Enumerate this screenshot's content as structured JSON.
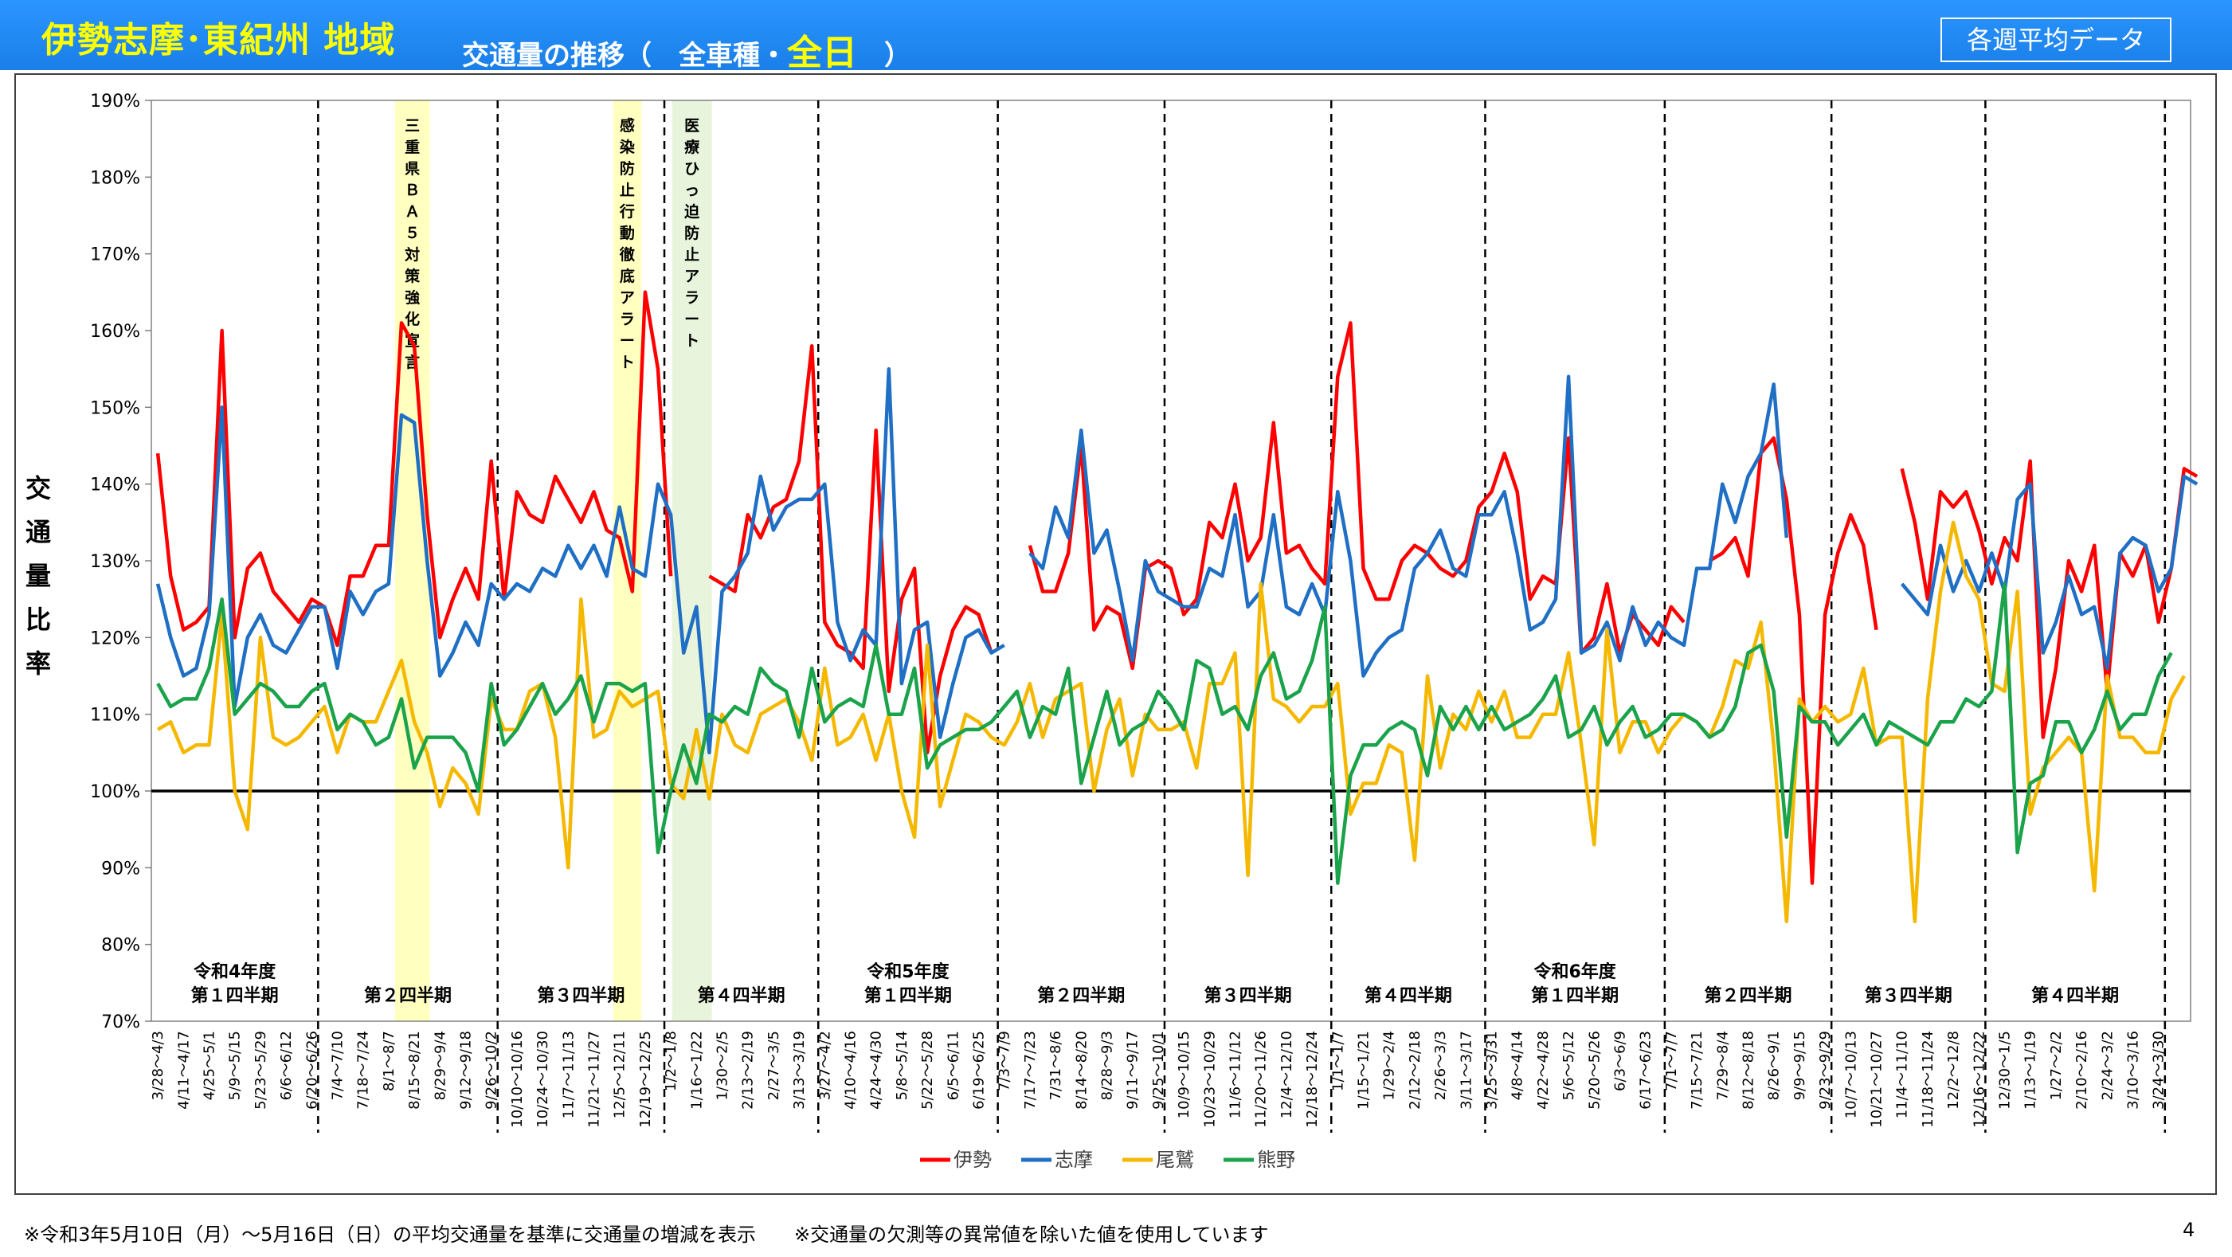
{
  "header": {
    "region": "伊勢志摩･東紀州 地域",
    "title_prefix": "交通量の推移（",
    "title_vehicle": "全車種・",
    "title_allday": "全日",
    "title_suffix": "）",
    "badge": "各週平均データ"
  },
  "footer": {
    "note": "※令和3年5月10日（月）～5月16日（日）の平均交通量を基準に交通量の増減を表示　　※交通量の欠測等の異常値を除いた値を使用しています",
    "page": "4"
  },
  "chart_data": {
    "type": "line",
    "ylabel": "交通量比率",
    "ylim": [
      70,
      190
    ],
    "y_ticks": [
      "70%",
      "80%",
      "90%",
      "100%",
      "110%",
      "120%",
      "130%",
      "140%",
      "150%",
      "160%",
      "170%",
      "180%",
      "190%"
    ],
    "reference_line": 100,
    "x_labels": [
      "3/28～4/3",
      "4/11～4/17",
      "4/25～5/1",
      "5/9～5/15",
      "5/23～5/29",
      "6/6～6/12",
      "6/20～6/26",
      "7/4～7/10",
      "7/18～7/24",
      "8/1～8/7",
      "8/15～8/21",
      "8/29～9/4",
      "9/12～9/18",
      "9/26～10/2",
      "10/10～10/16",
      "10/24～10/30",
      "11/7～11/13",
      "11/21～11/27",
      "12/5～12/11",
      "12/19～12/25",
      "1/2～1/8",
      "1/16～1/22",
      "1/30～2/5",
      "2/13～2/19",
      "2/27～3/5",
      "3/13～3/19",
      "3/27～4/2",
      "4/10～4/16",
      "4/24～4/30",
      "5/8～5/14",
      "5/22～5/28",
      "6/5～6/11",
      "6/19～6/25",
      "7/3～7/9",
      "7/17～7/23",
      "7/31～8/6",
      "8/14～8/20",
      "8/28～9/3",
      "9/11～9/17",
      "9/25～10/1",
      "10/9～10/15",
      "10/23～10/29",
      "11/6～11/12",
      "11/20～11/26",
      "12/4～12/10",
      "12/18～12/24",
      "1/1～1/7",
      "1/15～1/21",
      "1/29～2/4",
      "2/12～2/18",
      "2/26～3/3",
      "3/11～3/17",
      "3/25～3/31",
      "4/8～4/14",
      "4/22～4/28",
      "5/6～5/12",
      "5/20～5/26",
      "6/3～6/9",
      "6/17～6/23",
      "7/1～7/7",
      "7/15～7/21",
      "7/29～8/4",
      "8/12～8/18",
      "8/26～9/1",
      "9/9～9/15",
      "9/23～9/29",
      "10/7～10/13",
      "10/21～10/27",
      "11/4～11/10",
      "11/18～11/24",
      "12/2～12/8",
      "12/16～12/22",
      "12/30～1/5",
      "1/13～1/19",
      "1/27～2/2",
      "2/10～2/16",
      "2/24～3/2",
      "3/10～3/16",
      "3/24～3/30"
    ],
    "period_boundaries": [
      13,
      27,
      40,
      52,
      66,
      79,
      92,
      104,
      118,
      131,
      143,
      157,
      170
    ],
    "period_labels": [
      {
        "lines": [
          "令和4年度",
          "第１四半期"
        ],
        "start": 0,
        "end": 13
      },
      {
        "lines": [
          "第２四半期"
        ],
        "start": 13,
        "end": 27
      },
      {
        "lines": [
          "第３四半期"
        ],
        "start": 27,
        "end": 40
      },
      {
        "lines": [
          "第４四半期"
        ],
        "start": 40,
        "end": 52
      },
      {
        "lines": [
          "令和5年度",
          "第１四半期"
        ],
        "start": 52,
        "end": 66
      },
      {
        "lines": [
          "第２四半期"
        ],
        "start": 66,
        "end": 79
      },
      {
        "lines": [
          "第３四半期"
        ],
        "start": 79,
        "end": 92
      },
      {
        "lines": [
          "第４四半期"
        ],
        "start": 92,
        "end": 104
      },
      {
        "lines": [
          "令和6年度",
          "第１四半期"
        ],
        "start": 104,
        "end": 118
      },
      {
        "lines": [
          "第２四半期"
        ],
        "start": 118,
        "end": 131
      },
      {
        "lines": [
          "第３四半期"
        ],
        "start": 131,
        "end": 143
      },
      {
        "lines": [
          "第４四半期"
        ],
        "start": 143,
        "end": 157
      },
      {
        "lines": [],
        "start": 157,
        "end": 170
      }
    ],
    "annotations": [
      {
        "text": "三重県ＢＡ５対策強化宣言",
        "start": 19,
        "end": 21.7,
        "color": "#ffffc0"
      },
      {
        "text": "感染防止行動徹底アラート",
        "start": 36,
        "end": 38.2,
        "color": "#ffffc0"
      },
      {
        "text": "医療ひっ迫防止アラート",
        "start": 40.6,
        "end": 43.7,
        "color": "#e8f4dc"
      }
    ],
    "legend_position": "bottom",
    "series": [
      {
        "name": "伊勢",
        "color": "#ff0000",
        "values": [
          144,
          128,
          121,
          122,
          124,
          160,
          120,
          129,
          131,
          126,
          124,
          122,
          125,
          124,
          119,
          128,
          128,
          132,
          132,
          161,
          158,
          136,
          120,
          125,
          129,
          125,
          143,
          125,
          139,
          136,
          135,
          141,
          138,
          135,
          139,
          134,
          133,
          126,
          165,
          155,
          128,
          null,
          null,
          128,
          127,
          126,
          136,
          133,
          137,
          138,
          143,
          158,
          122,
          119,
          118,
          116,
          147,
          113,
          125,
          129,
          105,
          115,
          121,
          124,
          123,
          118,
          null,
          null,
          132,
          126,
          126,
          131,
          145,
          121,
          124,
          123,
          116,
          129,
          130,
          129,
          123,
          125,
          135,
          133,
          140,
          130,
          133,
          148,
          131,
          132,
          129,
          127,
          154,
          161,
          129,
          125,
          125,
          130,
          132,
          131,
          129,
          128,
          130,
          137,
          139,
          144,
          139,
          125,
          128,
          127,
          146,
          118,
          120,
          127,
          118,
          123,
          121,
          119,
          124,
          122,
          null,
          130,
          131,
          133,
          128,
          144,
          146,
          138,
          123,
          88,
          123,
          131,
          136,
          132,
          121,
          null,
          142,
          135,
          125,
          139,
          137,
          139,
          134,
          127,
          133,
          130,
          143,
          107,
          116,
          130,
          126,
          132,
          113,
          131,
          128,
          132,
          122,
          129,
          142,
          141
        ]
      },
      {
        "name": "志摩",
        "color": "#1f6fc5",
        "values": [
          127,
          120,
          115,
          116,
          123,
          150,
          111,
          120,
          123,
          119,
          118,
          121,
          124,
          124,
          116,
          126,
          123,
          126,
          127,
          149,
          148,
          130,
          115,
          118,
          122,
          119,
          127,
          125,
          127,
          126,
          129,
          128,
          132,
          129,
          132,
          128,
          137,
          129,
          128,
          140,
          136,
          118,
          124,
          105,
          126,
          128,
          131,
          141,
          134,
          137,
          138,
          138,
          140,
          122,
          117,
          121,
          119,
          155,
          114,
          121,
          122,
          107,
          114,
          120,
          121,
          118,
          119,
          null,
          131,
          129,
          137,
          133,
          147,
          131,
          134,
          126,
          117,
          130,
          126,
          125,
          124,
          124,
          129,
          128,
          136,
          124,
          126,
          136,
          124,
          123,
          127,
          123,
          139,
          130,
          115,
          118,
          120,
          121,
          129,
          131,
          134,
          129,
          128,
          136,
          136,
          139,
          131,
          121,
          122,
          125,
          154,
          118,
          119,
          122,
          117,
          124,
          119,
          122,
          120,
          119,
          129,
          129,
          140,
          135,
          141,
          144,
          153,
          133,
          null,
          null,
          null,
          null,
          null,
          null,
          null,
          null,
          127,
          125,
          123,
          132,
          126,
          130,
          126,
          131,
          126,
          138,
          140,
          118,
          122,
          128,
          123,
          124,
          116,
          131,
          133,
          132,
          126,
          129,
          141,
          140
        ]
      },
      {
        "name": "尾鷲",
        "color": "#f5b800",
        "values": [
          108,
          109,
          105,
          106,
          106,
          123,
          100,
          95,
          120,
          107,
          106,
          107,
          109,
          111,
          105,
          110,
          109,
          109,
          113,
          117,
          109,
          105,
          98,
          103,
          101,
          97,
          112,
          108,
          108,
          113,
          114,
          107,
          90,
          125,
          107,
          108,
          113,
          111,
          112,
          113,
          101,
          99,
          108,
          99,
          110,
          106,
          105,
          110,
          111,
          112,
          109,
          104,
          116,
          106,
          107,
          110,
          104,
          110,
          100,
          94,
          119,
          98,
          104,
          110,
          109,
          107,
          106,
          109,
          114,
          107,
          112,
          113,
          114,
          100,
          108,
          112,
          102,
          110,
          108,
          108,
          109,
          103,
          114,
          114,
          118,
          89,
          127,
          112,
          111,
          109,
          111,
          111,
          114,
          97,
          101,
          101,
          106,
          105,
          91,
          115,
          103,
          110,
          108,
          113,
          109,
          113,
          107,
          107,
          110,
          110,
          118,
          106,
          93,
          121,
          105,
          109,
          109,
          105,
          108,
          110,
          109,
          107,
          111,
          117,
          116,
          122,
          106,
          83,
          112,
          109,
          111,
          109,
          110,
          116,
          106,
          107,
          107,
          83,
          112,
          126,
          135,
          128,
          125,
          114,
          113,
          126,
          97,
          103,
          105,
          107,
          105,
          87,
          115,
          107,
          107,
          105,
          105,
          112,
          115
        ]
      },
      {
        "name": "熊野",
        "color": "#1aa34a",
        "values": [
          114,
          111,
          112,
          112,
          116,
          125,
          110,
          112,
          114,
          113,
          111,
          111,
          113,
          114,
          108,
          110,
          109,
          106,
          107,
          112,
          103,
          107,
          107,
          107,
          105,
          100,
          114,
          106,
          108,
          111,
          114,
          110,
          112,
          115,
          109,
          114,
          114,
          113,
          114,
          92,
          100,
          106,
          101,
          110,
          109,
          111,
          110,
          116,
          114,
          113,
          107,
          116,
          109,
          111,
          112,
          111,
          119,
          110,
          110,
          116,
          103,
          106,
          107,
          108,
          108,
          109,
          111,
          113,
          107,
          111,
          110,
          116,
          101,
          107,
          113,
          106,
          108,
          109,
          113,
          111,
          108,
          117,
          116,
          110,
          111,
          108,
          115,
          118,
          112,
          113,
          117,
          124,
          88,
          102,
          106,
          106,
          108,
          109,
          108,
          102,
          111,
          108,
          111,
          108,
          111,
          108,
          109,
          110,
          112,
          115,
          107,
          108,
          111,
          106,
          109,
          111,
          107,
          108,
          110,
          110,
          109,
          107,
          108,
          111,
          118,
          119,
          113,
          94,
          111,
          109,
          109,
          106,
          108,
          110,
          106,
          109,
          108,
          107,
          106,
          109,
          109,
          112,
          111,
          113,
          127,
          92,
          101,
          102,
          109,
          109,
          105,
          108,
          113,
          108,
          110,
          110,
          115,
          118
        ]
      }
    ]
  }
}
